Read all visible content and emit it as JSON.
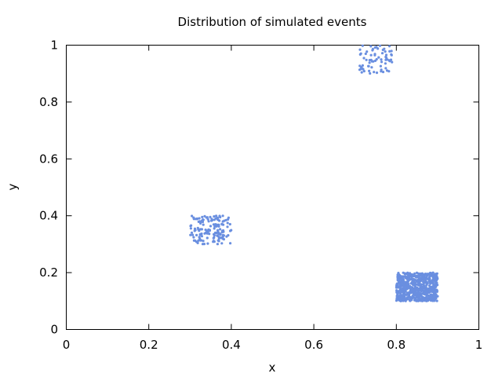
{
  "chart_data": {
    "type": "scatter",
    "title": "Distribution of simulated events",
    "xlabel": "x",
    "ylabel": "y",
    "xlim": [
      0,
      1
    ],
    "ylim": [
      0,
      1
    ],
    "xticks": [
      "0",
      "0.2",
      "0.4",
      "0.6",
      "0.8",
      "1"
    ],
    "yticks": [
      "0",
      "0.2",
      "0.4",
      "0.6",
      "0.8",
      "1"
    ],
    "grid": false,
    "legend": "none",
    "marker_color": "#6a8fe0",
    "clusters": [
      {
        "x_range": [
          0.3,
          0.4
        ],
        "y_range": [
          0.3,
          0.4
        ],
        "approx_count": 150
      },
      {
        "x_range": [
          0.71,
          0.79
        ],
        "y_range": [
          0.9,
          1.0
        ],
        "approx_count": 70
      },
      {
        "x_range": [
          0.8,
          0.9
        ],
        "y_range": [
          0.1,
          0.2
        ],
        "approx_count": 700
      }
    ]
  }
}
